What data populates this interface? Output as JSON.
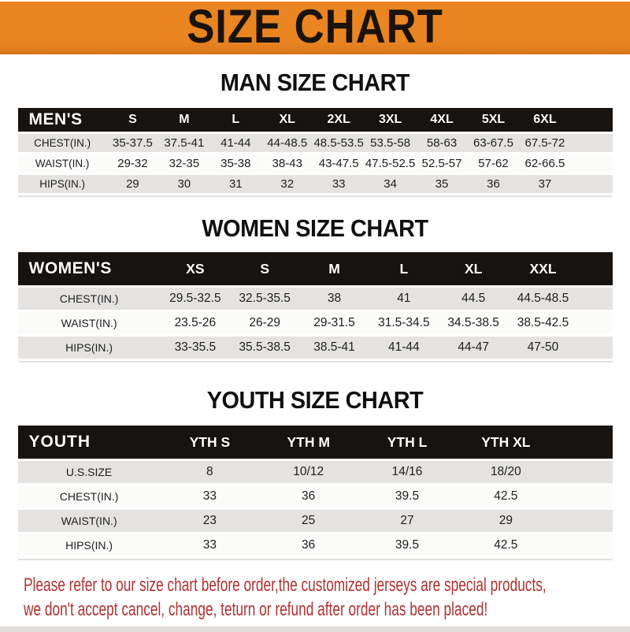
{
  "theme": {
    "banner_bg": "#EA8522",
    "header_bar_bg": "#171310",
    "row_alt_bg": "#E4E3E1",
    "footer_text_color": "#B13231"
  },
  "banner": {
    "title": "SIZE CHART"
  },
  "sections": [
    {
      "heading": "MAN SIZE CHART",
      "table": {
        "header_label": "MEN'S",
        "columns": [
          "S",
          "M",
          "L",
          "XL",
          "2XL",
          "3XL",
          "4XL",
          "5XL",
          "6XL"
        ],
        "rows": [
          {
            "label": "CHEST(IN.)",
            "values": [
              "35-37.5",
              "37.5-41",
              "41-44",
              "44-48.5",
              "48.5-53.5",
              "53.5-58",
              "58-63",
              "63-67.5",
              "67.5-72"
            ]
          },
          {
            "label": "WAIST(IN.)",
            "values": [
              "29-32",
              "32-35",
              "35-38",
              "38-43",
              "43-47.5",
              "47.5-52.5",
              "52.5-57",
              "57-62",
              "62-66.5"
            ]
          },
          {
            "label": "HIPS(IN.)",
            "values": [
              "29",
              "30",
              "31",
              "32",
              "33",
              "34",
              "35",
              "36",
              "37"
            ]
          }
        ]
      }
    },
    {
      "heading": "WOMEN SIZE CHART",
      "table": {
        "header_label": "WOMEN'S",
        "columns": [
          "XS",
          "S",
          "M",
          "L",
          "XL",
          "XXL"
        ],
        "rows": [
          {
            "label": "CHEST(IN.)",
            "values": [
              "29.5-32.5",
              "32.5-35.5",
              "38",
              "41",
              "44.5",
              "44.5-48.5"
            ]
          },
          {
            "label": "WAIST(IN.)",
            "values": [
              "23.5-26",
              "26-29",
              "29-31.5",
              "31.5-34.5",
              "34.5-38.5",
              "38.5-42.5"
            ]
          },
          {
            "label": "HIPS(IN.)",
            "values": [
              "33-35.5",
              "35.5-38.5",
              "38.5-41",
              "41-44",
              "44-47",
              "47-50"
            ]
          }
        ]
      }
    },
    {
      "heading": "YOUTH SIZE CHART",
      "table": {
        "header_label": "YOUTH",
        "columns": [
          "YTH S",
          "YTH M",
          "YTH L",
          "YTH XL"
        ],
        "rows": [
          {
            "label": "U.S.SIZE",
            "values": [
              "8",
              "10/12",
              "14/16",
              "18/20"
            ]
          },
          {
            "label": "CHEST(IN.)",
            "values": [
              "33",
              "36",
              "39.5",
              "42.5"
            ]
          },
          {
            "label": "WAIST(IN.)",
            "values": [
              "23",
              "25",
              "27",
              "29"
            ]
          },
          {
            "label": "HIPS(IN.)",
            "values": [
              "33",
              "36",
              "39.5",
              "42.5"
            ]
          }
        ]
      }
    }
  ],
  "footer": {
    "line1": "Please refer to our size chart before order,the customized jerseys are special products,",
    "line2": "we don't accept cancel, change, teturn or refund after order has been placed!"
  }
}
